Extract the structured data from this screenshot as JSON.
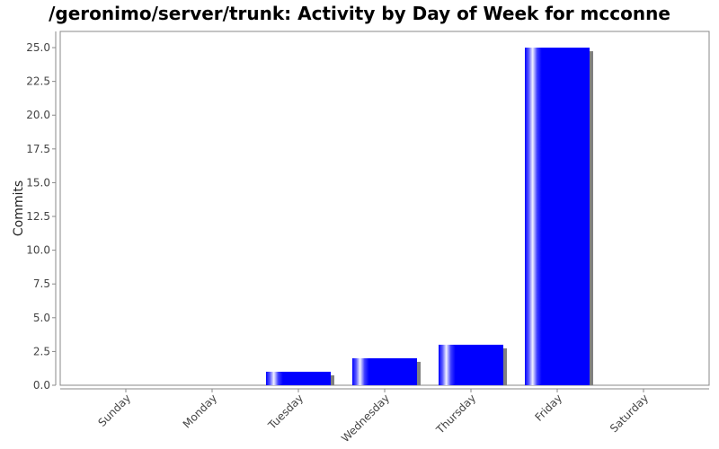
{
  "chart_data": {
    "type": "bar",
    "title": "/geronimo/server/trunk: Activity by Day of Week for mcconne",
    "xlabel": "",
    "ylabel": "Commits",
    "categories": [
      "Sunday",
      "Monday",
      "Tuesday",
      "Wednesday",
      "Thursday",
      "Friday",
      "Saturday"
    ],
    "values": [
      0,
      0,
      1,
      2,
      3,
      25,
      0
    ],
    "ylim": [
      0,
      26.2
    ],
    "yticks": [
      "0.0",
      "2.5",
      "5.0",
      "7.5",
      "10.0",
      "12.5",
      "15.0",
      "17.5",
      "20.0",
      "22.5",
      "25.0"
    ],
    "grid": false,
    "legend": "none",
    "bar_color": "#0000ff",
    "shadow_color": "#808080"
  }
}
